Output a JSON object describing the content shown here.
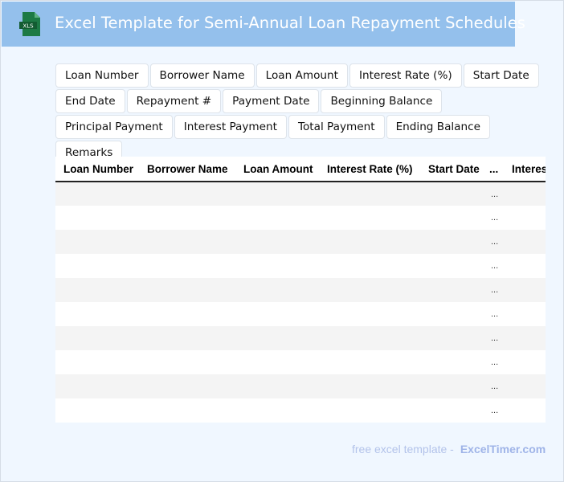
{
  "header": {
    "title": "Excel Template for Semi-Annual Loan Repayment Schedules",
    "logo_text": "XLS",
    "color": "#94c0ec"
  },
  "chips": [
    "Loan Number",
    "Borrower Name",
    "Loan Amount",
    "Interest Rate (%)",
    "Start Date",
    "End Date",
    "Repayment #",
    "Payment Date",
    "Beginning Balance",
    "Principal Payment",
    "Interest Payment",
    "Total Payment",
    "Ending Balance",
    "Remarks"
  ],
  "table": {
    "columns": [
      "Loan Number",
      "Borrower Name",
      "Loan Amount",
      "Interest Rate (%)",
      "Start Date",
      "...",
      "Interest"
    ],
    "ellipsis": "...",
    "row_count": 10
  },
  "footer": {
    "text": "free excel template -",
    "brand": "ExcelTimer.com"
  }
}
